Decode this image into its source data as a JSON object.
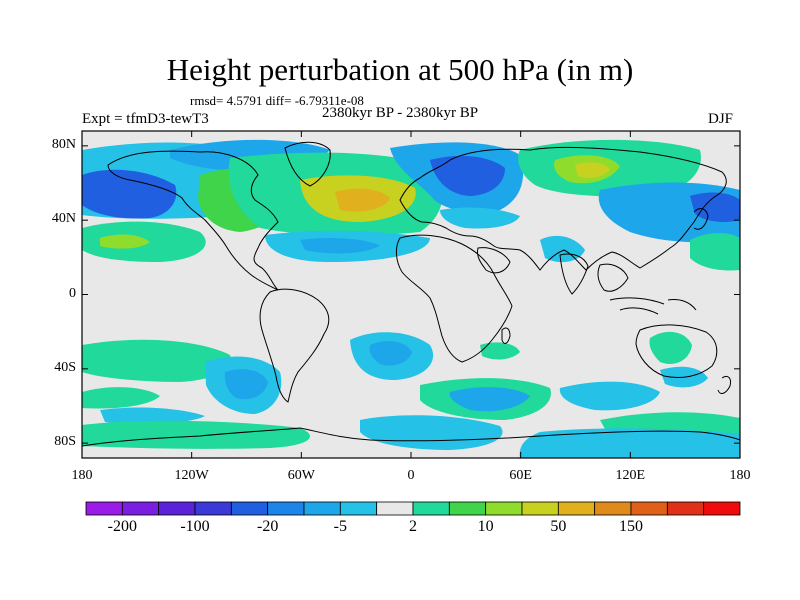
{
  "title": "Height perturbation at 500 hPa (in m)",
  "stats": "rmsd= 4.5791 diff= -6.79311e-08",
  "period": "2380kyr BP - 2380kyr BP",
  "expt": "Expt = tfmD3-tewT3",
  "season": "DJF",
  "lat_ticks": [
    {
      "value": 80,
      "label": "80N"
    },
    {
      "value": 40,
      "label": "40N"
    },
    {
      "value": 0,
      "label": "0"
    },
    {
      "value": -40,
      "label": "40S"
    },
    {
      "value": -80,
      "label": "80S"
    }
  ],
  "lon_ticks": [
    {
      "value": -180,
      "label": "180"
    },
    {
      "value": -120,
      "label": "120W"
    },
    {
      "value": -60,
      "label": "60W"
    },
    {
      "value": 0,
      "label": "0"
    },
    {
      "value": 60,
      "label": "60E"
    },
    {
      "value": 120,
      "label": "120E"
    },
    {
      "value": 180,
      "label": "180"
    }
  ],
  "colorbar": {
    "colors": [
      "#9a1ce6",
      "#7a1ee0",
      "#5a23d8",
      "#3b3ad6",
      "#1f5fe0",
      "#1c86e8",
      "#1ea6ea",
      "#25c1e6",
      "#e8e8e8",
      "#20d99a",
      "#3fd44a",
      "#8fdc2c",
      "#c8d020",
      "#e0b01e",
      "#e08a1c",
      "#e0601a",
      "#e03018",
      "#f00c0c"
    ],
    "labels": [
      {
        "index": 1,
        "text": "-200"
      },
      {
        "index": 3,
        "text": "-100"
      },
      {
        "index": 5,
        "text": "-20"
      },
      {
        "index": 7,
        "text": "-5"
      },
      {
        "index": 9,
        "text": "2"
      },
      {
        "index": 11,
        "text": "10"
      },
      {
        "index": 13,
        "text": "50"
      },
      {
        "index": 15,
        "text": "150"
      }
    ]
  },
  "field_colors": {
    "land_outline": "#000000",
    "background": "#e8e8e8",
    "neg_weak": "#25c1e6",
    "neg_mid": "#1ea6ea",
    "neg_strong": "#1f5fe0",
    "pos_weak": "#20d99a",
    "pos_mid": "#3fd44a",
    "pos_strong": "#8fdc2c",
    "pos_max": "#c8d020"
  }
}
